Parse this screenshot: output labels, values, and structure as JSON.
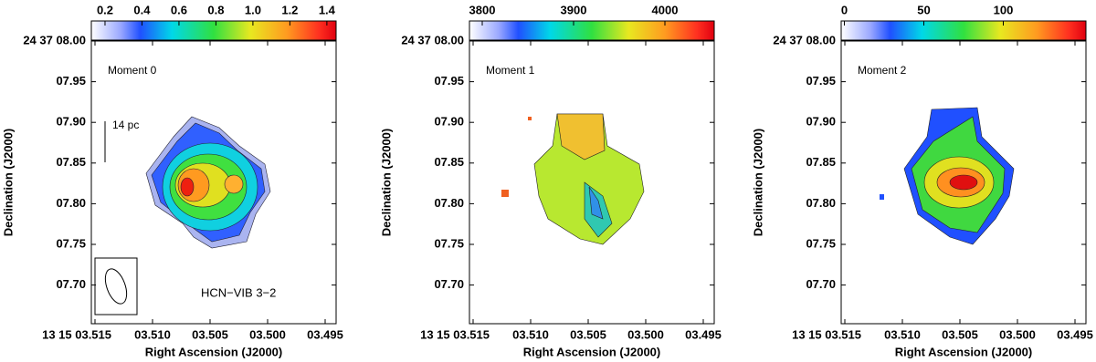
{
  "panels": [
    {
      "map_label": "Moment 0",
      "colorbar": {
        "lim": [
          0.126,
          1.45
        ],
        "ticks": [
          0.2,
          0.4,
          0.6,
          0.8,
          {
            "value": 1,
            "label": "1.0"
          },
          1.2,
          1.4
        ]
      },
      "y_ticks": [
        "24 37 08.00",
        "07.95",
        "07.90",
        "07.85",
        "07.80",
        "07.75",
        "07.70"
      ],
      "x_ticks": [
        "13 15 03.515",
        "03.510",
        "03.505",
        "03.500",
        "03.495"
      ],
      "x_axis_label": "Right Ascension (J2000)",
      "y_axis_label": "Declination (J2000)",
      "scale_bar": "14 pc",
      "line_label": "HCN−VIB 3−2"
    },
    {
      "map_label": "Moment 1",
      "colorbar": {
        "lim": [
          3786,
          4054
        ],
        "ticks": [
          3800,
          3900,
          4000
        ]
      },
      "y_ticks": [
        "24 37 08.00",
        "07.95",
        "07.90",
        "07.85",
        "07.80",
        "07.75",
        "07.70"
      ],
      "x_ticks": [
        "13 15 03.515",
        "03.510",
        "03.505",
        "03.500",
        "03.495"
      ],
      "x_axis_label": "Right Ascension (J2000)",
      "y_axis_label": "Declination (J2000)"
    },
    {
      "map_label": "Moment 2",
      "colorbar": {
        "lim": [
          -2,
          152
        ],
        "ticks": [
          0,
          50,
          100
        ]
      },
      "y_ticks": [
        "24 37 08.00",
        "07.95",
        "07.90",
        "07.85",
        "07.80",
        "07.75",
        "07.70"
      ],
      "x_ticks": [
        "13 15 03.515",
        "03.510",
        "03.505",
        "03.500",
        "03.495"
      ],
      "x_axis_label": "Right Ascension (J2000)",
      "y_axis_label": "Declination (J2000)"
    }
  ]
}
